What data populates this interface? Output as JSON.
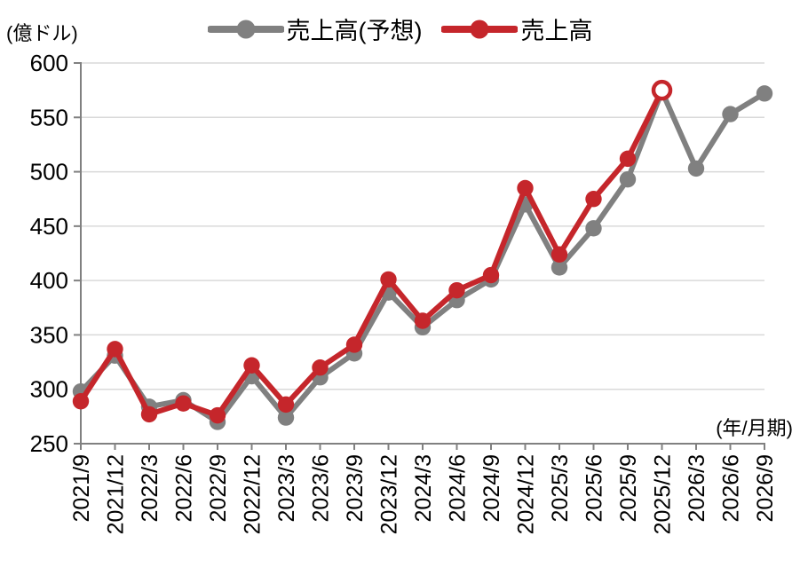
{
  "unit_label": "(億ドル)",
  "axis_note": "(年/月期)",
  "legend": {
    "items": [
      {
        "label": "売上高(予想)",
        "series": "forecast"
      },
      {
        "label": "売上高",
        "series": "actual"
      }
    ]
  },
  "colors": {
    "forecast": "#808080",
    "actual": "#C5262B",
    "gridline": "#D9D9D9",
    "axis": "#808080",
    "text": "#000000",
    "background": "#FFFFFF"
  },
  "chart_data": {
    "type": "line",
    "title": "",
    "ylabel": "(億ドル)",
    "xlabel": "(年/月期)",
    "ylim": [
      250,
      600
    ],
    "ytick_step": 50,
    "grid": true,
    "legend_position": "top-center",
    "categories": [
      "2021/9",
      "2021/12",
      "2022/3",
      "2022/6",
      "2022/9",
      "2022/12",
      "2023/3",
      "2023/6",
      "2023/9",
      "2023/12",
      "2024/3",
      "2024/6",
      "2024/9",
      "2024/12",
      "2025/3",
      "2025/6",
      "2025/9",
      "2025/12",
      "2026/3",
      "2026/6",
      "2026/9"
    ],
    "series": [
      {
        "name": "売上高(予想)",
        "color_key": "forecast",
        "marker": "filled-circle",
        "values": [
          298,
          331,
          284,
          290,
          270,
          312,
          274,
          311,
          333,
          389,
          357,
          382,
          401,
          470,
          412,
          448,
          493,
          574,
          503,
          553,
          572
        ]
      },
      {
        "name": "売上高",
        "color_key": "actual",
        "marker": "filled-circle",
        "last_point_marker": "open-circle",
        "values": [
          289,
          337,
          277,
          287,
          276,
          322,
          286,
          320,
          341,
          401,
          363,
          391,
          405,
          485,
          424,
          475,
          512,
          575,
          null,
          null,
          null
        ]
      }
    ]
  }
}
